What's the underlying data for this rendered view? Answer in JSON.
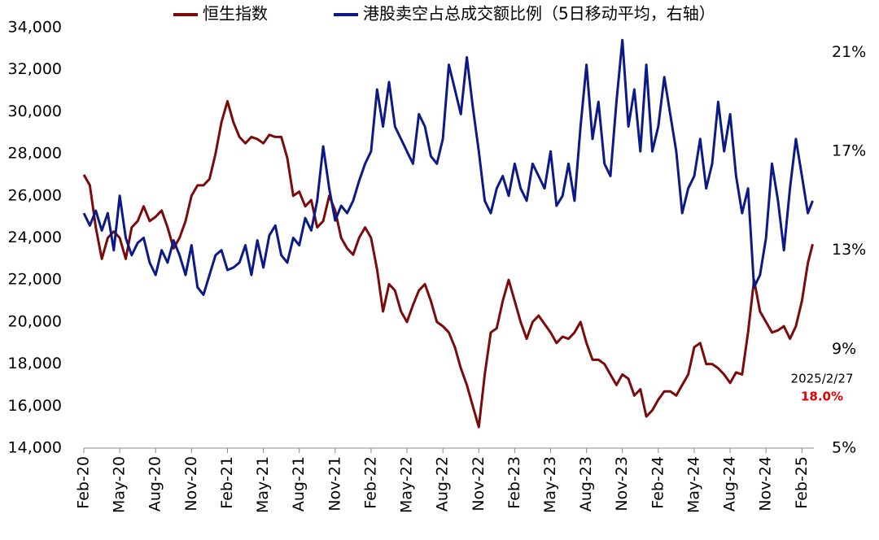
{
  "chart_data": {
    "type": "line",
    "x": [
      0,
      0.5,
      1,
      1.5,
      2,
      2.5,
      3,
      3.5,
      4,
      4.5,
      5,
      5.5,
      6,
      6.5,
      7,
      7.5,
      8,
      8.5,
      9,
      9.5,
      10,
      10.5,
      11,
      11.5,
      12,
      12.5,
      13,
      13.5,
      14,
      14.5,
      15,
      15.5,
      16,
      16.5,
      17,
      17.5,
      18,
      18.5,
      19,
      19.5,
      20,
      20.5,
      21,
      21.5,
      22,
      22.5,
      23,
      23.5,
      24,
      24.5,
      25,
      25.5,
      26,
      26.5,
      27,
      27.5,
      28,
      28.5,
      29,
      29.5,
      30,
      30.5,
      31,
      31.5,
      32,
      32.5,
      33,
      33.5,
      34,
      34.5,
      35,
      35.5,
      36,
      36.5,
      37,
      37.5,
      38,
      38.5,
      39,
      39.5,
      40,
      40.5,
      41,
      41.5,
      42,
      42.5,
      43,
      43.5,
      44,
      44.5,
      45,
      45.5,
      46,
      46.5,
      47,
      47.5,
      48,
      48.5,
      49,
      49.5,
      50,
      50.5,
      51,
      51.5,
      52,
      52.5,
      53,
      53.5,
      54,
      54.5,
      55,
      55.5,
      56,
      56.5,
      57,
      57.5,
      58,
      58.5,
      59,
      59.5,
      60,
      60.5,
      60.9
    ],
    "xlim": [
      0,
      61
    ],
    "xticks": [
      {
        "value": 0,
        "label": "Feb-20"
      },
      {
        "value": 3,
        "label": "May-20"
      },
      {
        "value": 6,
        "label": "Aug-20"
      },
      {
        "value": 9,
        "label": "Nov-20"
      },
      {
        "value": 12,
        "label": "Feb-21"
      },
      {
        "value": 15,
        "label": "May-21"
      },
      {
        "value": 18,
        "label": "Aug-21"
      },
      {
        "value": 21,
        "label": "Nov-21"
      },
      {
        "value": 24,
        "label": "Feb-22"
      },
      {
        "value": 27,
        "label": "May-22"
      },
      {
        "value": 30,
        "label": "Aug-22"
      },
      {
        "value": 33,
        "label": "Nov-22"
      },
      {
        "value": 36,
        "label": "Feb-23"
      },
      {
        "value": 39,
        "label": "May-23"
      },
      {
        "value": 42,
        "label": "Aug-23"
      },
      {
        "value": 45,
        "label": "Nov-23"
      },
      {
        "value": 48,
        "label": "Feb-24"
      },
      {
        "value": 51,
        "label": "May-24"
      },
      {
        "value": 54,
        "label": "Aug-24"
      },
      {
        "value": 57,
        "label": "Nov-24"
      },
      {
        "value": 60,
        "label": "Feb-25"
      }
    ],
    "ylim": [
      14000,
      34000
    ],
    "yticks": [
      {
        "value": 14000,
        "label": "14,000"
      },
      {
        "value": 16000,
        "label": "16,000"
      },
      {
        "value": 18000,
        "label": "18,000"
      },
      {
        "value": 20000,
        "label": "20,000"
      },
      {
        "value": 22000,
        "label": "22,000"
      },
      {
        "value": 24000,
        "label": "24,000"
      },
      {
        "value": 26000,
        "label": "26,000"
      },
      {
        "value": 28000,
        "label": "28,000"
      },
      {
        "value": 30000,
        "label": "30,000"
      },
      {
        "value": 32000,
        "label": "32,000"
      },
      {
        "value": 34000,
        "label": "34,000"
      }
    ],
    "y2lim": [
      5,
      22
    ],
    "y2ticks": [
      {
        "value": 5,
        "label": "5%"
      },
      {
        "value": 9,
        "label": "9%"
      },
      {
        "value": 13,
        "label": "13%"
      },
      {
        "value": 17,
        "label": "17%"
      },
      {
        "value": 21,
        "label": "21%"
      }
    ],
    "series": [
      {
        "name": "恒生指数",
        "color": "#7b0a0a",
        "values": [
          27000,
          26500,
          24500,
          23000,
          24000,
          24300,
          24000,
          23000,
          24500,
          24800,
          25500,
          24800,
          25000,
          25300,
          24500,
          23500,
          24000,
          24800,
          26000,
          26500,
          26500,
          26800,
          28000,
          29500,
          30500,
          29500,
          28800,
          28500,
          28800,
          28700,
          28500,
          28900,
          28800,
          28800,
          27800,
          26000,
          26200,
          25500,
          25800,
          24500,
          24800,
          26000,
          25300,
          24000,
          23500,
          23200,
          24000,
          24500,
          24000,
          22500,
          20500,
          21800,
          21500,
          20500,
          20000,
          20800,
          21500,
          21800,
          21000,
          20000,
          19800,
          19500,
          18800,
          17800,
          17000,
          16000,
          15000,
          17500,
          19500,
          19700,
          21000,
          22000,
          21000,
          20000,
          19200,
          20000,
          20300,
          19900,
          19500,
          19000,
          19300,
          19200,
          19500,
          20000,
          19000,
          18200,
          18200,
          18000,
          17500,
          17000,
          17500,
          17300,
          16500,
          16800,
          15500,
          15800,
          16300,
          16700,
          16700,
          16500,
          17000,
          17500,
          18800,
          19000,
          18000,
          18000,
          17800,
          17500,
          17100,
          17600,
          17500,
          19500,
          22000,
          20500,
          20000,
          19500,
          19600,
          19800,
          19200,
          19800,
          21000,
          22800,
          23700
        ]
      },
      {
        "name": "港股卖空占总成交额比例（5日移动平均，右轴）",
        "color": "#0c1a88",
        "axis": "y2",
        "values": [
          14.5,
          14.0,
          14.6,
          13.8,
          14.5,
          13.0,
          15.2,
          13.5,
          12.8,
          13.3,
          13.5,
          12.5,
          12.0,
          13.0,
          12.5,
          13.4,
          12.8,
          12.0,
          13.2,
          11.5,
          11.2,
          12.0,
          12.8,
          13.0,
          12.2,
          12.3,
          12.5,
          13.2,
          12.0,
          13.4,
          12.3,
          13.6,
          14.0,
          12.8,
          12.5,
          13.5,
          13.2,
          14.3,
          13.8,
          15.0,
          17.2,
          15.5,
          14.2,
          14.8,
          14.5,
          15.0,
          15.8,
          16.5,
          17.0,
          19.5,
          18.0,
          19.8,
          18.0,
          17.5,
          17.0,
          16.5,
          18.5,
          18.0,
          16.8,
          16.5,
          17.5,
          20.5,
          19.5,
          18.5,
          20.8,
          18.8,
          17.0,
          15.0,
          14.5,
          15.5,
          16.0,
          15.2,
          16.5,
          15.5,
          15.0,
          16.5,
          16.0,
          15.5,
          17.0,
          14.8,
          15.2,
          16.5,
          15.0,
          18.0,
          20.5,
          17.5,
          19.0,
          16.5,
          16.0,
          19.0,
          21.5,
          18.0,
          19.5,
          17.0,
          20.5,
          17.0,
          18.0,
          20.0,
          18.5,
          17.0,
          14.5,
          15.5,
          16.0,
          17.5,
          15.5,
          16.5,
          19.0,
          17.0,
          18.5,
          16.0,
          14.5,
          15.5,
          11.5,
          12.0,
          13.5,
          16.5,
          15.0,
          13.0,
          15.5,
          17.5,
          16.0,
          14.5,
          15.0
        ]
      }
    ],
    "annotations": [
      "2025/2/27",
      "18.0%"
    ]
  }
}
